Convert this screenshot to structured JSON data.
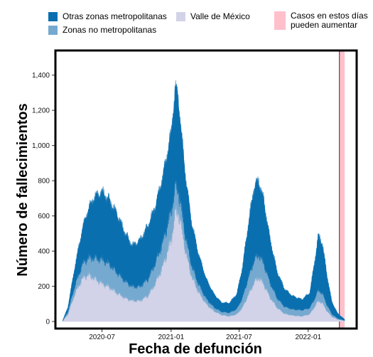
{
  "legend": {
    "items": [
      {
        "label": "Otras zonas metropolitanas",
        "color": "#0a6faf"
      },
      {
        "label": "Zonas no metropolitanas",
        "color": "#76a9cf"
      },
      {
        "label": "Valle de México",
        "color": "#d2d2e8"
      },
      {
        "label": "Casos en estos días\npueden aumentar",
        "color": "#ffc0cb"
      }
    ]
  },
  "chart_data": {
    "type": "area",
    "stacked": true,
    "xlabel": "Fecha de defunción",
    "ylabel": "Número de fallecimientos",
    "x_start": "2020-03-18",
    "x_end": "2022-04-08",
    "xlim": [
      "2020-02-28",
      "2022-05-10"
    ],
    "ylim": [
      -40,
      1540
    ],
    "x_ticks": [
      {
        "date": "2020-07-01",
        "label": "2020-07"
      },
      {
        "date": "2021-01-01",
        "label": "2021-01"
      },
      {
        "date": "2021-07-01",
        "label": "2021-07"
      },
      {
        "date": "2022-01-01",
        "label": "2022-01"
      }
    ],
    "y_ticks": [
      0,
      200,
      400,
      600,
      800,
      1000,
      1200,
      1400
    ],
    "y_tick_labels": [
      "0",
      "200",
      "400",
      "600",
      "800",
      "1,000",
      "1,200",
      "1,400"
    ],
    "uncertain_period": {
      "start": "2022-03-25",
      "end": "2022-04-08",
      "color": "#ffc0cb"
    },
    "series": [
      {
        "name": "Valle de México",
        "color": "#d2d2e8",
        "points": [
          [
            "2020-03-18",
            2
          ],
          [
            "2020-04-01",
            40
          ],
          [
            "2020-04-20",
            160
          ],
          [
            "2020-05-10",
            250
          ],
          [
            "2020-05-25",
            270
          ],
          [
            "2020-06-10",
            250
          ],
          [
            "2020-07-01",
            220
          ],
          [
            "2020-07-20",
            200
          ],
          [
            "2020-08-10",
            165
          ],
          [
            "2020-09-01",
            135
          ],
          [
            "2020-09-20",
            120
          ],
          [
            "2020-10-10",
            120
          ],
          [
            "2020-11-01",
            150
          ],
          [
            "2020-11-20",
            220
          ],
          [
            "2020-12-10",
            320
          ],
          [
            "2021-01-01",
            470
          ],
          [
            "2021-01-12",
            620
          ],
          [
            "2021-01-20",
            640
          ],
          [
            "2021-01-28",
            550
          ],
          [
            "2021-02-10",
            390
          ],
          [
            "2021-02-25",
            260
          ],
          [
            "2021-03-15",
            170
          ],
          [
            "2021-04-05",
            100
          ],
          [
            "2021-04-25",
            60
          ],
          [
            "2021-05-15",
            38
          ],
          [
            "2021-06-05",
            30
          ],
          [
            "2021-06-25",
            42
          ],
          [
            "2021-07-10",
            80
          ],
          [
            "2021-07-25",
            150
          ],
          [
            "2021-08-10",
            225
          ],
          [
            "2021-08-22",
            255
          ],
          [
            "2021-09-05",
            215
          ],
          [
            "2021-09-20",
            145
          ],
          [
            "2021-10-10",
            80
          ],
          [
            "2021-10-30",
            45
          ],
          [
            "2021-11-20",
            35
          ],
          [
            "2021-12-15",
            30
          ],
          [
            "2022-01-05",
            42
          ],
          [
            "2022-01-18",
            85
          ],
          [
            "2022-01-28",
            120
          ],
          [
            "2022-02-08",
            105
          ],
          [
            "2022-02-20",
            60
          ],
          [
            "2022-03-05",
            28
          ],
          [
            "2022-03-20",
            12
          ],
          [
            "2022-04-08",
            4
          ]
        ]
      },
      {
        "name": "Zonas no metropolitanas",
        "color": "#76a9cf",
        "points": [
          [
            "2020-03-18",
            0
          ],
          [
            "2020-04-01",
            15
          ],
          [
            "2020-04-20",
            45
          ],
          [
            "2020-05-10",
            80
          ],
          [
            "2020-05-25",
            95
          ],
          [
            "2020-06-10",
            115
          ],
          [
            "2020-07-01",
            135
          ],
          [
            "2020-07-20",
            130
          ],
          [
            "2020-08-10",
            115
          ],
          [
            "2020-09-01",
            95
          ],
          [
            "2020-09-20",
            80
          ],
          [
            "2020-10-10",
            80
          ],
          [
            "2020-11-01",
            95
          ],
          [
            "2020-11-20",
            115
          ],
          [
            "2020-12-10",
            135
          ],
          [
            "2021-01-01",
            160
          ],
          [
            "2021-01-12",
            150
          ],
          [
            "2021-01-20",
            120
          ],
          [
            "2021-01-28",
            100
          ],
          [
            "2021-02-10",
            80
          ],
          [
            "2021-02-25",
            60
          ],
          [
            "2021-03-15",
            45
          ],
          [
            "2021-04-05",
            30
          ],
          [
            "2021-04-25",
            22
          ],
          [
            "2021-05-15",
            18
          ],
          [
            "2021-06-05",
            20
          ],
          [
            "2021-06-25",
            30
          ],
          [
            "2021-07-10",
            55
          ],
          [
            "2021-07-25",
            95
          ],
          [
            "2021-08-10",
            125
          ],
          [
            "2021-08-22",
            130
          ],
          [
            "2021-09-05",
            115
          ],
          [
            "2021-09-20",
            85
          ],
          [
            "2021-10-10",
            55
          ],
          [
            "2021-10-30",
            40
          ],
          [
            "2021-11-20",
            35
          ],
          [
            "2021-12-15",
            35
          ],
          [
            "2022-01-05",
            35
          ],
          [
            "2022-01-18",
            45
          ],
          [
            "2022-01-28",
            60
          ],
          [
            "2022-02-08",
            55
          ],
          [
            "2022-02-20",
            35
          ],
          [
            "2022-03-05",
            15
          ],
          [
            "2022-03-20",
            6
          ],
          [
            "2022-04-08",
            2
          ]
        ]
      },
      {
        "name": "Otras zonas metropolitanas",
        "color": "#0a6faf",
        "points": [
          [
            "2020-03-18",
            3
          ],
          [
            "2020-04-01",
            25
          ],
          [
            "2020-04-20",
            110
          ],
          [
            "2020-05-10",
            200
          ],
          [
            "2020-05-25",
            270
          ],
          [
            "2020-06-10",
            340
          ],
          [
            "2020-07-01",
            380
          ],
          [
            "2020-07-20",
            360
          ],
          [
            "2020-08-10",
            330
          ],
          [
            "2020-09-01",
            270
          ],
          [
            "2020-09-20",
            230
          ],
          [
            "2020-10-10",
            260
          ],
          [
            "2020-11-01",
            300
          ],
          [
            "2020-11-20",
            320
          ],
          [
            "2020-12-10",
            370
          ],
          [
            "2021-01-01",
            440
          ],
          [
            "2021-01-12",
            560
          ],
          [
            "2021-01-20",
            520
          ],
          [
            "2021-01-28",
            430
          ],
          [
            "2021-02-10",
            330
          ],
          [
            "2021-02-25",
            240
          ],
          [
            "2021-03-15",
            170
          ],
          [
            "2021-04-05",
            110
          ],
          [
            "2021-04-25",
            75
          ],
          [
            "2021-05-15",
            52
          ],
          [
            "2021-06-05",
            55
          ],
          [
            "2021-06-25",
            85
          ],
          [
            "2021-07-10",
            175
          ],
          [
            "2021-07-25",
            300
          ],
          [
            "2021-08-10",
            415
          ],
          [
            "2021-08-22",
            415
          ],
          [
            "2021-09-05",
            355
          ],
          [
            "2021-09-20",
            255
          ],
          [
            "2021-10-10",
            150
          ],
          [
            "2021-10-30",
            100
          ],
          [
            "2021-11-20",
            75
          ],
          [
            "2021-12-15",
            60
          ],
          [
            "2022-01-05",
            85
          ],
          [
            "2022-01-18",
            210
          ],
          [
            "2022-01-28",
            310
          ],
          [
            "2022-02-08",
            280
          ],
          [
            "2022-02-20",
            170
          ],
          [
            "2022-03-05",
            70
          ],
          [
            "2022-03-20",
            30
          ],
          [
            "2022-04-08",
            6
          ]
        ]
      }
    ]
  }
}
